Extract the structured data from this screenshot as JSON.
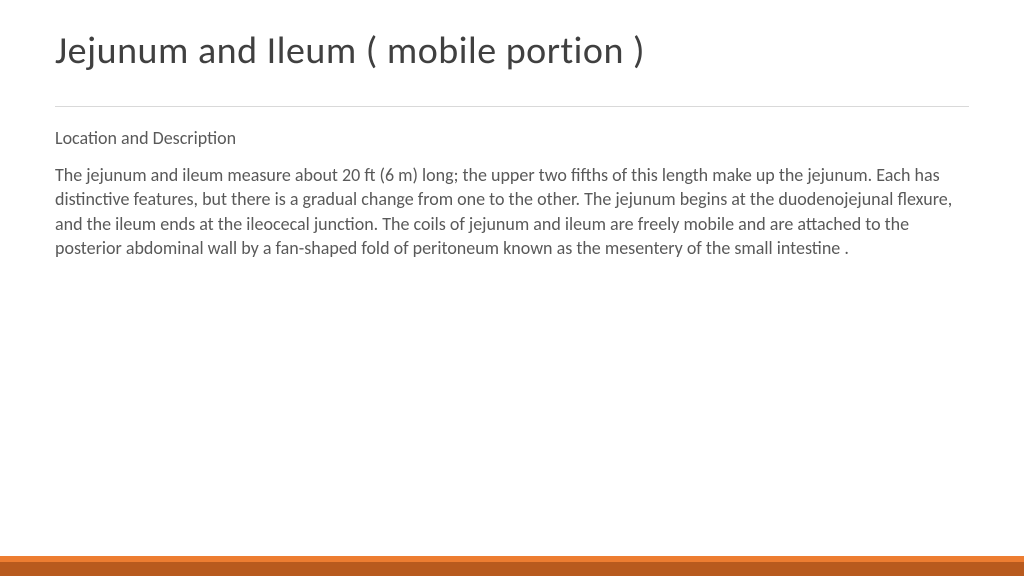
{
  "slide": {
    "title": "Jejunum and Ileum ( mobile portion )",
    "subtitle": "Location and Description",
    "body": "The jejunum and ileum measure about 20 ft (6 m) long; the upper two fifths of this length make up the jejunum. Each has distinctive features, but there is a gradual change from one to the other. The jejunum begins at the duodenojejunal flexure, and the ileum ends at the ileocecal junction. The coils of jejunum and ileum are freely mobile and are attached to the posterior abdominal wall by a fan-shaped fold of peritoneum known as the mesentery of the small intestine .",
    "title_color": "#404040",
    "text_color": "#595959",
    "title_fontsize": 38,
    "body_fontsize": 18,
    "background_color": "#ffffff",
    "divider_color": "#d9d9d9",
    "footer_accent_color": "#ed7d31",
    "footer_base_color": "#b85a1e"
  }
}
